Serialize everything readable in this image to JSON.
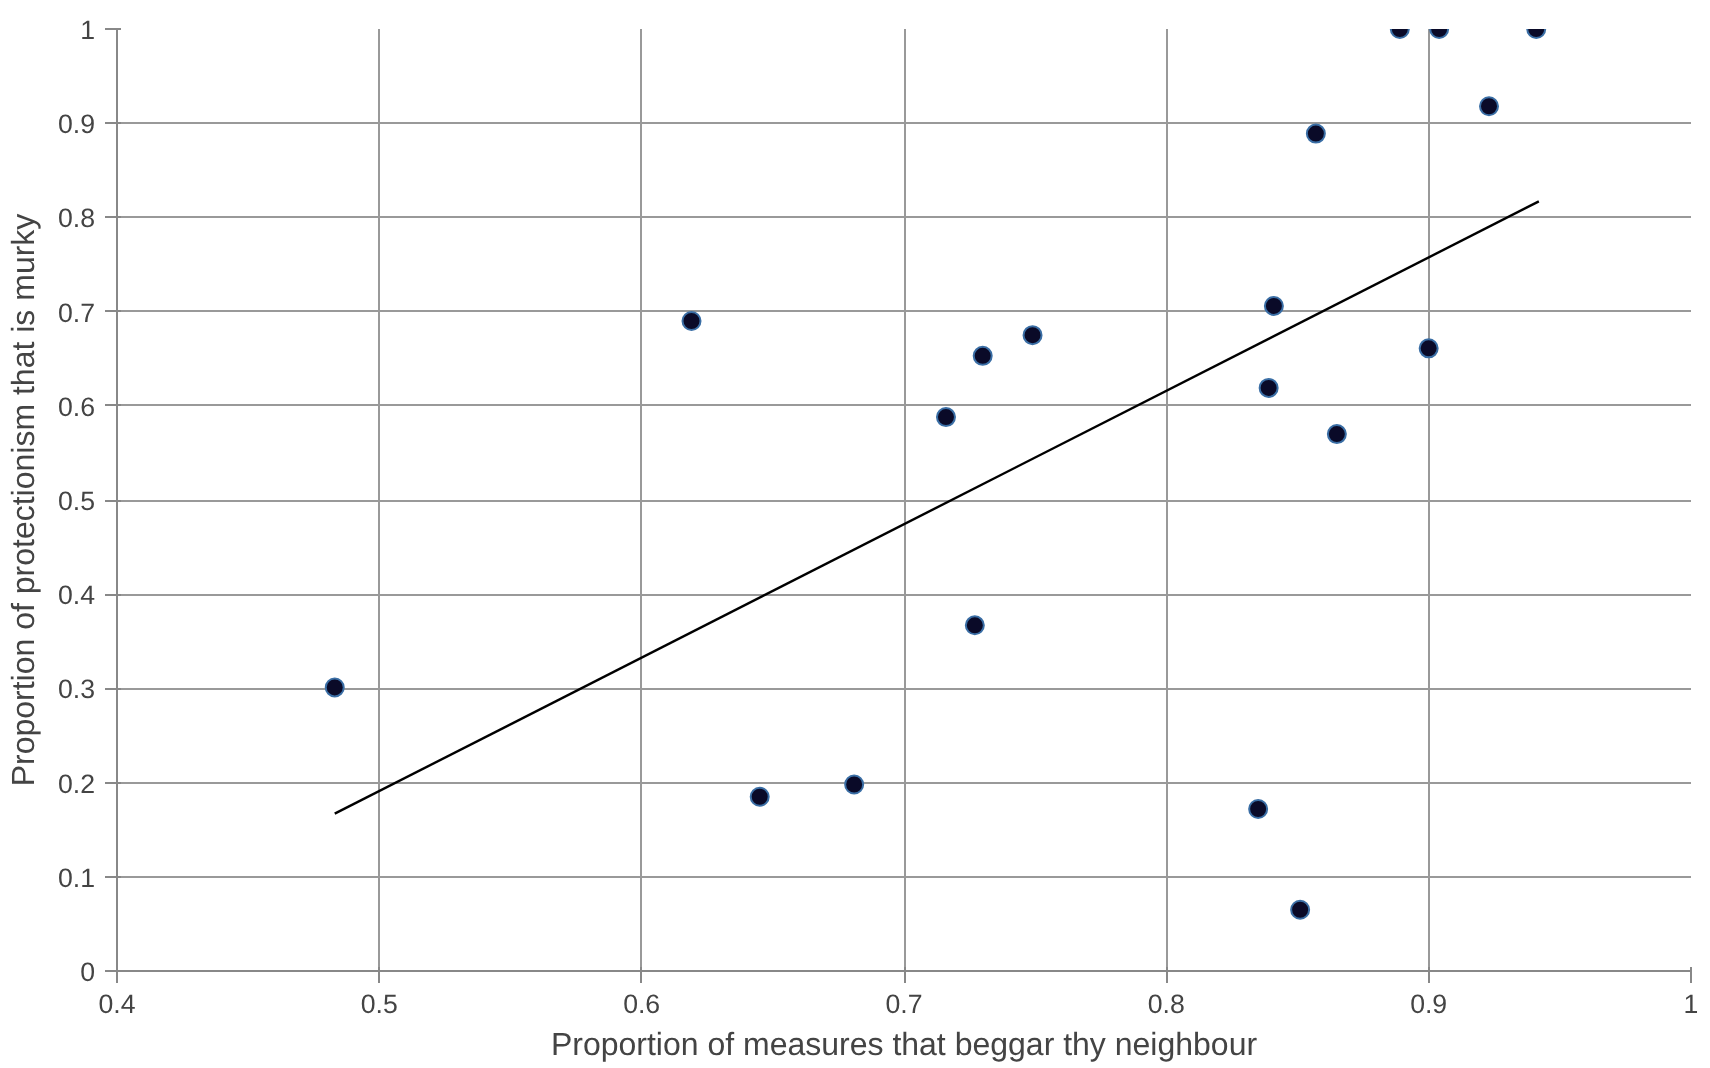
{
  "chart_data": {
    "type": "scatter",
    "xlabel": "Proportion of measures that beggar thy neighbour",
    "ylabel": "Proportion of protectionism that is murky",
    "xlim": [
      0.4,
      1
    ],
    "ylim": [
      0,
      1
    ],
    "xticks": [
      0.4,
      0.5,
      0.6,
      0.7,
      0.8,
      0.9,
      1
    ],
    "yticks": [
      0,
      0.1,
      0.2,
      0.3,
      0.4,
      0.5,
      0.6,
      0.7,
      0.8,
      0.9,
      1
    ],
    "grid": true,
    "series": [
      {
        "marker": "circle",
        "color": "#0a0a28",
        "x": [
          0.483,
          0.619,
          0.645,
          0.681,
          0.716,
          0.727,
          0.73,
          0.749,
          0.835,
          0.839,
          0.841,
          0.851,
          0.857,
          0.865,
          0.889,
          0.9,
          0.904,
          0.923,
          0.941
        ],
        "values": [
          0.301,
          0.69,
          0.185,
          0.198,
          0.588,
          0.367,
          0.653,
          0.675,
          0.172,
          0.619,
          0.706,
          0.065,
          0.889,
          0.57,
          1.0,
          0.661,
          1.0,
          0.918,
          1.0
        ]
      },
      {
        "type": "line",
        "color": "#000000",
        "x": [
          0.483,
          0.942
        ],
        "values": [
          0.167,
          0.817
        ]
      }
    ]
  }
}
